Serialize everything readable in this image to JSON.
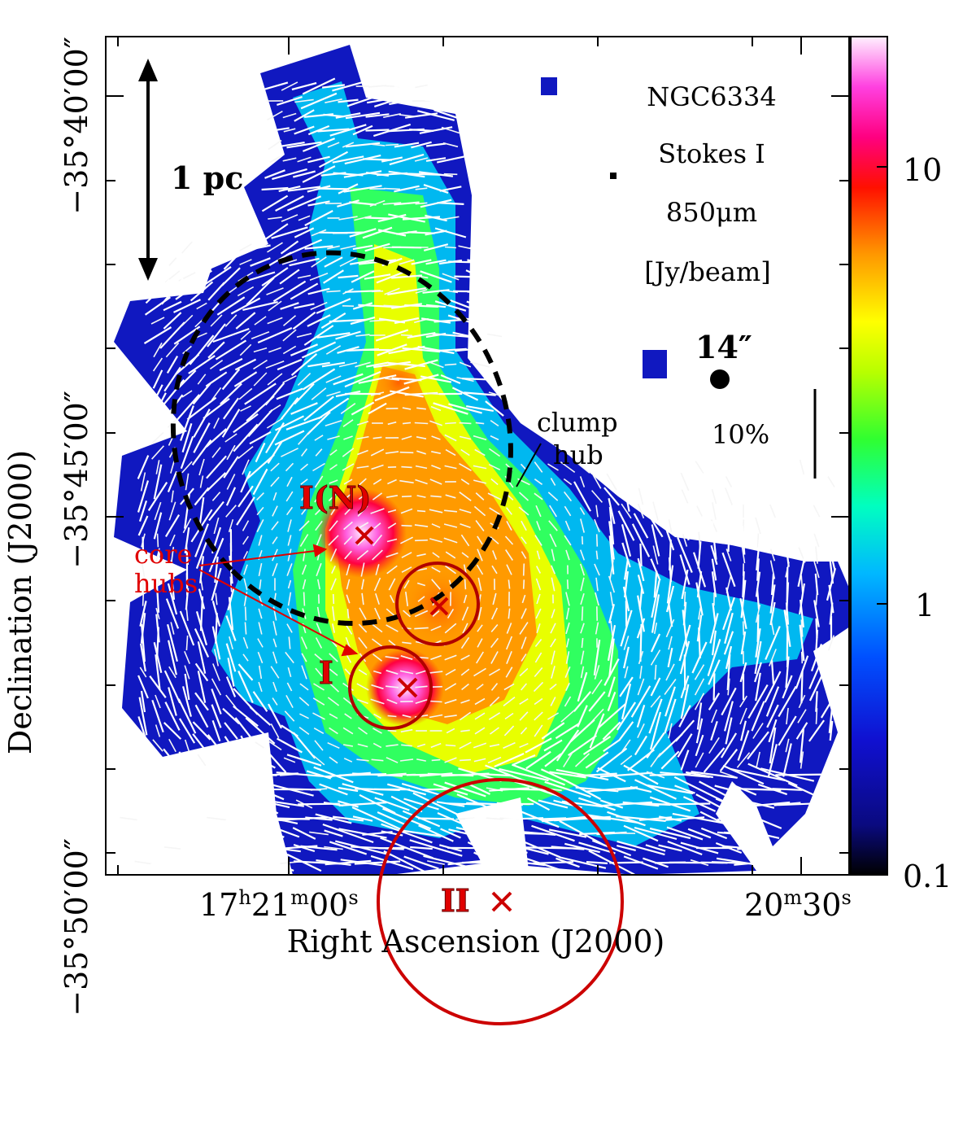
{
  "figure": {
    "field_name": "NGC6334",
    "quantity": "Stokes I",
    "wavelength": "850μm",
    "unit": "[Jy/beam]",
    "beam_label": "14″",
    "pol_scale_label": "10%",
    "scale_bar_label": "1 pc",
    "clump_hub_label_1": "clump",
    "clump_hub_label_2": "hub",
    "core_hubs_label_1": "core",
    "core_hubs_label_2": "hubs",
    "source_labels": [
      "I(N)",
      "I",
      "II"
    ]
  },
  "axes": {
    "x_label": "Right Ascension (J2000)",
    "y_label": "Declination (J2000)",
    "x_ticks": [
      {
        "h": "17",
        "hs": "h",
        "m": "21",
        "ms": "m",
        "s": "00",
        "ss": "s"
      },
      {
        "m": "20",
        "ms": "m",
        "s": "30",
        "ss": "s"
      }
    ],
    "y_ticks": [
      "−35°40′00″",
      "−35°45′00″",
      "−35°50′00″"
    ]
  },
  "colorbar": {
    "ticks": [
      "10",
      "1",
      "0.1"
    ],
    "scale": "log",
    "range": [
      0.1,
      20
    ],
    "colors": [
      "#000000",
      "#1010c8",
      "#0040ff",
      "#00c8ff",
      "#00ffb0",
      "#30ff30",
      "#c8ff00",
      "#ffff00",
      "#ffa000",
      "#ff3000",
      "#ff0030",
      "#ff00c0",
      "#ffc8ff",
      "#ffffff"
    ]
  },
  "colors": {
    "annotation_red": "#e00000",
    "hub_circle": "#b00000",
    "vector": "#ffffff"
  }
}
